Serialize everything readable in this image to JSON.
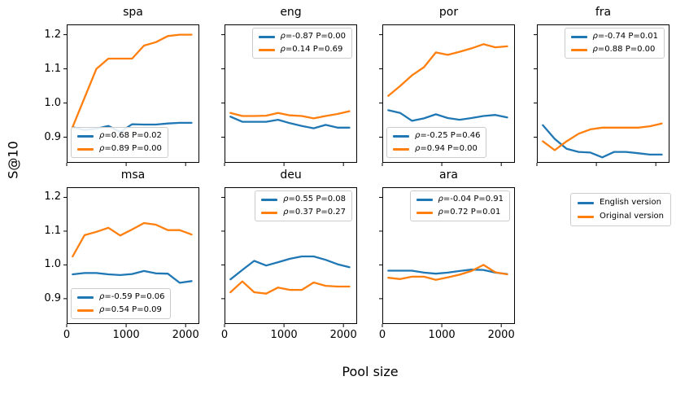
{
  "figure": {
    "ylabel": "S@10",
    "xlabel": "Pool size",
    "background": "#ffffff"
  },
  "figure_legend": {
    "entries": [
      {
        "label": "English version",
        "color": "#1f77b4"
      },
      {
        "label": "Original version",
        "color": "#ff7f0e"
      }
    ]
  },
  "chart_data": {
    "type": "line",
    "xlabel": "Pool size",
    "ylabel": "S@10",
    "x": [
      100,
      300,
      500,
      700,
      900,
      1100,
      1300,
      1500,
      1700,
      1900,
      2100
    ],
    "xlim": [
      0,
      2230
    ],
    "ylim": [
      0.825,
      1.23
    ],
    "xticks": [
      0,
      1000,
      2000
    ],
    "xtick_labels": [
      "0",
      "1000",
      "2000"
    ],
    "yticks": [
      0.9,
      1.0,
      1.1,
      1.2
    ],
    "ytick_labels": [
      "0.9",
      "1.0",
      "1.1",
      "1.2"
    ],
    "grid": false,
    "series_names": [
      "English version",
      "Original version"
    ],
    "subplots": [
      {
        "title": "spa",
        "legend_loc": "lower left",
        "series": [
          {
            "name": "English version",
            "color": "#1f77b4",
            "legend_label": "ρ=0.68 P=0.02",
            "values": [
              0.929,
              0.921,
              0.925,
              0.933,
              0.915,
              0.938,
              0.937,
              0.937,
              0.94,
              0.942,
              0.942
            ]
          },
          {
            "name": "Original version",
            "color": "#ff7f0e",
            "legend_label": "ρ=0.89 P=0.00",
            "values": [
              0.93,
              1.015,
              1.1,
              1.13,
              1.13,
              1.13,
              1.168,
              1.178,
              1.196,
              1.2,
              1.2
            ]
          }
        ]
      },
      {
        "title": "eng",
        "legend_loc": "upper right",
        "series": [
          {
            "name": "English version",
            "color": "#1f77b4",
            "legend_label": "ρ=-0.87 P=0.00",
            "values": [
              0.96,
              0.945,
              0.945,
              0.945,
              0.951,
              0.941,
              0.933,
              0.926,
              0.936,
              0.928,
              0.928
            ]
          },
          {
            "name": "Original version",
            "color": "#ff7f0e",
            "legend_label": "ρ=0.14 P=0.69",
            "values": [
              0.971,
              0.962,
              0.962,
              0.963,
              0.971,
              0.964,
              0.962,
              0.955,
              0.962,
              0.968,
              0.976
            ]
          }
        ]
      },
      {
        "title": "por",
        "legend_loc": "lower left",
        "series": [
          {
            "name": "English version",
            "color": "#1f77b4",
            "legend_label": "ρ=-0.25 P=0.46",
            "values": [
              0.979,
              0.971,
              0.948,
              0.955,
              0.967,
              0.956,
              0.951,
              0.956,
              0.962,
              0.965,
              0.958
            ]
          },
          {
            "name": "Original version",
            "color": "#ff7f0e",
            "legend_label": "ρ=0.94 P=0.00",
            "values": [
              1.021,
              1.05,
              1.081,
              1.105,
              1.148,
              1.141,
              1.15,
              1.16,
              1.172,
              1.163,
              1.166
            ]
          }
        ]
      },
      {
        "title": "fra",
        "legend_loc": "upper right",
        "series": [
          {
            "name": "English version",
            "color": "#1f77b4",
            "legend_label": "ρ=-0.74 P=0.01",
            "values": [
              0.935,
              0.895,
              0.866,
              0.857,
              0.855,
              0.841,
              0.857,
              0.857,
              0.853,
              0.849,
              0.849
            ]
          },
          {
            "name": "Original version",
            "color": "#ff7f0e",
            "legend_label": "ρ=0.88 P=0.00",
            "values": [
              0.888,
              0.862,
              0.888,
              0.91,
              0.923,
              0.928,
              0.928,
              0.928,
              0.928,
              0.932,
              0.94
            ]
          }
        ]
      },
      {
        "title": "msa",
        "legend_loc": "lower left",
        "series": [
          {
            "name": "English version",
            "color": "#1f77b4",
            "legend_label": "ρ=-0.59 P=0.06",
            "values": [
              0.972,
              0.976,
              0.976,
              0.972,
              0.97,
              0.973,
              0.982,
              0.975,
              0.974,
              0.947,
              0.952
            ]
          },
          {
            "name": "Original version",
            "color": "#ff7f0e",
            "legend_label": "ρ=0.54 P=0.09",
            "values": [
              1.025,
              1.088,
              1.098,
              1.11,
              1.087,
              1.105,
              1.124,
              1.119,
              1.103,
              1.103,
              1.09
            ]
          }
        ]
      },
      {
        "title": "deu",
        "legend_loc": "upper right",
        "series": [
          {
            "name": "English version",
            "color": "#1f77b4",
            "legend_label": "ρ=0.55 P=0.08",
            "values": [
              0.957,
              0.985,
              1.012,
              0.998,
              1.008,
              1.018,
              1.025,
              1.025,
              1.015,
              1.002,
              0.993
            ]
          },
          {
            "name": "Original version",
            "color": "#ff7f0e",
            "legend_label": "ρ=0.37 P=0.27",
            "values": [
              0.919,
              0.951,
              0.919,
              0.915,
              0.933,
              0.926,
              0.926,
              0.948,
              0.938,
              0.936,
              0.936
            ]
          }
        ]
      },
      {
        "title": "ara",
        "legend_loc": "upper right",
        "series": [
          {
            "name": "English version",
            "color": "#1f77b4",
            "legend_label": "ρ=-0.04 P=0.91",
            "values": [
              0.983,
              0.983,
              0.983,
              0.977,
              0.974,
              0.977,
              0.982,
              0.986,
              0.985,
              0.977,
              0.973
            ]
          },
          {
            "name": "Original version",
            "color": "#ff7f0e",
            "legend_label": "ρ=0.72 P=0.01",
            "values": [
              0.962,
              0.958,
              0.965,
              0.965,
              0.956,
              0.963,
              0.971,
              0.982,
              1.0,
              0.978,
              0.972
            ]
          }
        ]
      }
    ]
  }
}
